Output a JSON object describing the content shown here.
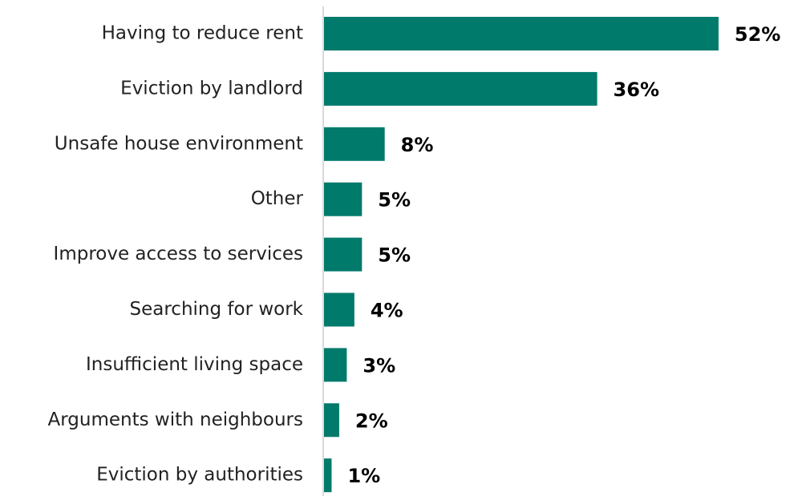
{
  "chart_data": {
    "type": "barh",
    "categories": [
      "Having to reduce rent",
      "Eviction by landlord",
      "Unsafe house environment",
      "Other",
      "Improve access to services",
      "Searching for work",
      "Insufficient living space",
      "Arguments with neighbours",
      "Eviction by authorities"
    ],
    "values": [
      52,
      36,
      8,
      5,
      5,
      4,
      3,
      2,
      1
    ],
    "value_labels": [
      "52%",
      "36%",
      "8%",
      "5%",
      "5%",
      "4%",
      "3%",
      "2%",
      "1%"
    ],
    "color": "#007a6b"
  }
}
